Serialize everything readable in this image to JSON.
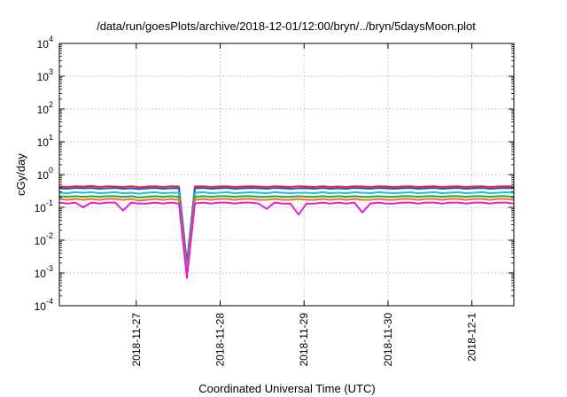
{
  "chart_data": {
    "type": "line",
    "title": "/data/run/goesPlots/archive/2018-12-01/12:00/bryn/../bryn/5daysMoon.plot",
    "xlabel": "Coordinated Universal Time (UTC)",
    "ylabel": "cGy/day",
    "yscale": "log",
    "ylim": [
      0.0001,
      10000
    ],
    "xlim": [
      "2018-11-26 02:00",
      "2018-12-01 12:00"
    ],
    "grid": true,
    "legend": "none",
    "yticks": [
      {
        "base": "10",
        "exp": "4",
        "value": 10000
      },
      {
        "base": "10",
        "exp": "3",
        "value": 1000
      },
      {
        "base": "10",
        "exp": "2",
        "value": 100
      },
      {
        "base": "10",
        "exp": "1",
        "value": 10
      },
      {
        "base": "10",
        "exp": "0",
        "value": 1
      },
      {
        "base": "10",
        "exp": "-1",
        "value": 0.1
      },
      {
        "base": "10",
        "exp": "-2",
        "value": 0.01
      },
      {
        "base": "10",
        "exp": "-3",
        "value": 0.001
      },
      {
        "base": "10",
        "exp": "-4",
        "value": 0.0001
      }
    ],
    "xticks": [
      "2018-11-27",
      "2018-11-28",
      "2018-11-29",
      "2018-11-30",
      "2018-12-1"
    ],
    "series": [
      {
        "color": "#e8232a",
        "values": [
          0.43,
          0.42,
          0.44,
          0.43,
          0.45,
          0.42,
          0.44,
          0.43,
          0.42,
          0.44,
          0.41,
          0.43,
          0.44,
          0.42,
          0.44,
          0.43,
          0.002,
          0.43,
          0.44,
          0.42,
          0.43,
          0.44,
          0.42,
          0.43,
          0.44,
          0.43,
          0.42,
          0.44,
          0.43,
          0.42,
          0.44,
          0.43,
          0.42,
          0.44,
          0.42,
          0.43,
          0.42,
          0.44,
          0.43,
          0.42,
          0.44,
          0.43,
          0.42,
          0.43,
          0.44,
          0.42,
          0.43,
          0.44,
          0.42,
          0.43,
          0.44,
          0.42,
          0.43,
          0.44,
          0.42,
          0.43,
          0.44,
          0.43
        ]
      },
      {
        "color": "#2f4fd6",
        "values": [
          0.38,
          0.37,
          0.39,
          0.38,
          0.39,
          0.37,
          0.38,
          0.39,
          0.37,
          0.38,
          0.36,
          0.38,
          0.39,
          0.37,
          0.38,
          0.38,
          0.0016,
          0.38,
          0.39,
          0.37,
          0.38,
          0.39,
          0.37,
          0.38,
          0.39,
          0.38,
          0.37,
          0.39,
          0.38,
          0.37,
          0.38,
          0.38,
          0.37,
          0.39,
          0.37,
          0.38,
          0.37,
          0.39,
          0.38,
          0.37,
          0.39,
          0.38,
          0.37,
          0.38,
          0.39,
          0.37,
          0.38,
          0.39,
          0.37,
          0.38,
          0.39,
          0.37,
          0.38,
          0.39,
          0.37,
          0.38,
          0.39,
          0.38
        ]
      },
      {
        "color": "#19c3c8",
        "values": [
          0.28,
          0.27,
          0.29,
          0.28,
          0.29,
          0.27,
          0.28,
          0.29,
          0.27,
          0.28,
          0.26,
          0.28,
          0.29,
          0.27,
          0.28,
          0.28,
          0.0012,
          0.28,
          0.29,
          0.27,
          0.28,
          0.29,
          0.27,
          0.28,
          0.29,
          0.28,
          0.27,
          0.29,
          0.28,
          0.27,
          0.28,
          0.28,
          0.27,
          0.29,
          0.27,
          0.28,
          0.27,
          0.29,
          0.28,
          0.27,
          0.29,
          0.28,
          0.27,
          0.28,
          0.29,
          0.27,
          0.28,
          0.29,
          0.27,
          0.28,
          0.29,
          0.27,
          0.28,
          0.29,
          0.27,
          0.28,
          0.29,
          0.28
        ]
      },
      {
        "color": "#2aa63a",
        "values": [
          0.22,
          0.21,
          0.22,
          0.21,
          0.22,
          0.21,
          0.22,
          0.22,
          0.21,
          0.22,
          0.2,
          0.21,
          0.22,
          0.21,
          0.22,
          0.21,
          0.001,
          0.21,
          0.22,
          0.21,
          0.22,
          0.22,
          0.21,
          0.22,
          0.22,
          0.21,
          0.21,
          0.22,
          0.21,
          0.21,
          0.22,
          0.21,
          0.21,
          0.22,
          0.21,
          0.22,
          0.21,
          0.22,
          0.21,
          0.21,
          0.22,
          0.21,
          0.21,
          0.22,
          0.22,
          0.21,
          0.22,
          0.22,
          0.21,
          0.22,
          0.22,
          0.21,
          0.22,
          0.22,
          0.21,
          0.22,
          0.22,
          0.21
        ]
      },
      {
        "color": "#f07020",
        "values": [
          0.18,
          0.17,
          0.18,
          0.17,
          0.18,
          0.17,
          0.18,
          0.18,
          0.17,
          0.18,
          0.16,
          0.17,
          0.18,
          0.17,
          0.18,
          0.17,
          0.0009,
          0.17,
          0.18,
          0.17,
          0.18,
          0.18,
          0.17,
          0.18,
          0.18,
          0.17,
          0.17,
          0.18,
          0.17,
          0.17,
          0.18,
          0.17,
          0.17,
          0.18,
          0.17,
          0.18,
          0.17,
          0.18,
          0.17,
          0.17,
          0.18,
          0.17,
          0.17,
          0.18,
          0.18,
          0.17,
          0.18,
          0.18,
          0.17,
          0.18,
          0.18,
          0.17,
          0.18,
          0.18,
          0.17,
          0.18,
          0.18,
          0.17
        ]
      },
      {
        "color": "#e020e0",
        "values": [
          0.14,
          0.13,
          0.14,
          0.1,
          0.14,
          0.13,
          0.14,
          0.14,
          0.08,
          0.14,
          0.13,
          0.13,
          0.14,
          0.13,
          0.14,
          0.13,
          0.0007,
          0.13,
          0.14,
          0.13,
          0.14,
          0.14,
          0.13,
          0.14,
          0.14,
          0.13,
          0.09,
          0.14,
          0.13,
          0.13,
          0.06,
          0.13,
          0.13,
          0.14,
          0.13,
          0.14,
          0.13,
          0.14,
          0.07,
          0.13,
          0.14,
          0.13,
          0.13,
          0.14,
          0.14,
          0.13,
          0.14,
          0.14,
          0.13,
          0.14,
          0.14,
          0.13,
          0.14,
          0.14,
          0.13,
          0.14,
          0.14,
          0.13
        ]
      }
    ]
  }
}
